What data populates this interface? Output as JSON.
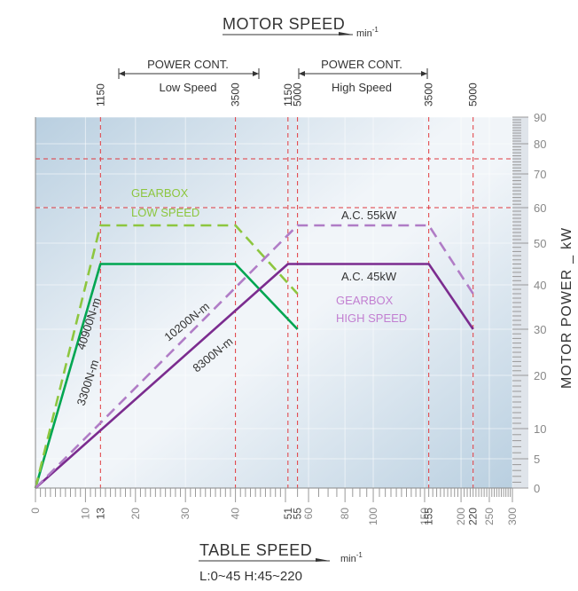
{
  "header": {
    "motor_speed_label": "MOTOR SPEED",
    "motor_speed_unit": "min",
    "unit_superscript": "-1"
  },
  "power_cont": [
    {
      "label": "POWER CONT.",
      "sublabel": "Low Speed",
      "from_rpm": 1150,
      "to_rpm": 3500
    },
    {
      "label": "POWER CONT.",
      "sublabel": "High Speed",
      "from_rpm": 1150,
      "to_rpm": 3500
    }
  ],
  "top_ticks": [
    {
      "label": "1150",
      "at_table_speed": 13
    },
    {
      "label": "3500",
      "at_table_speed": 40
    },
    {
      "label": "1150",
      "at_table_speed": 51
    },
    {
      "label": "5000",
      "at_table_speed": 55
    },
    {
      "label": "3500",
      "at_table_speed": 155
    },
    {
      "label": "5000",
      "at_table_speed": 220
    }
  ],
  "chart_data": {
    "type": "line",
    "xlabel": "TABLE SPEED",
    "xunit": "min",
    "x_range_note": "L:0~45 H:45~220",
    "ylabel": "MOTOR POWER",
    "yunit": "kW",
    "x_scale": "piecewise (0–50 linear, 50–300 log)",
    "x_ticks": [
      "0",
      "10",
      "13",
      "20",
      "30",
      "40",
      "51",
      "55",
      "60",
      "80",
      "100",
      "150",
      "155",
      "200",
      "220",
      "250",
      "300"
    ],
    "y_ticks": [
      "0",
      "5",
      "10",
      "20",
      "30",
      "40",
      "50",
      "60",
      "70",
      "80",
      "90"
    ],
    "ylim": [
      0,
      90
    ],
    "reference_lines_x": [
      13,
      40,
      51,
      55,
      155,
      220
    ],
    "reference_lines_y": [
      60,
      75
    ],
    "series": [
      {
        "name": "GEARBOX LOW SPEED",
        "color": "#00a651",
        "dash": false,
        "points": [
          [
            0,
            0
          ],
          [
            13,
            45
          ],
          [
            40,
            45
          ],
          [
            55,
            30
          ]
        ]
      },
      {
        "name": "GEARBOX LOW SPEED",
        "color": "#8dc63f",
        "dash": true,
        "points": [
          [
            0,
            0
          ],
          [
            13,
            55
          ],
          [
            40,
            55
          ],
          [
            55,
            38
          ]
        ]
      },
      {
        "name": "A.C. 45kW",
        "color": "#7b2c8f",
        "dash": false,
        "points": [
          [
            0,
            0
          ],
          [
            51,
            45
          ],
          [
            155,
            45
          ],
          [
            220,
            30
          ]
        ]
      },
      {
        "name": "A.C. 55kW",
        "color": "#b07cc6",
        "dash": true,
        "points": [
          [
            0,
            0
          ],
          [
            55,
            55
          ],
          [
            155,
            55
          ],
          [
            220,
            38
          ]
        ]
      }
    ],
    "annotations": [
      {
        "text": "GEARBOX",
        "color": "#8dc63f"
      },
      {
        "text": "LOW SPEED",
        "color": "#8dc63f"
      },
      {
        "text": "A.C. 55kW",
        "color": "#333333"
      },
      {
        "text": "A.C. 45kW",
        "color": "#333333"
      },
      {
        "text": "GEARBOX",
        "color": "#c27fd1"
      },
      {
        "text": "HIGH SPEED",
        "color": "#c27fd1"
      },
      {
        "text": "40900N-m",
        "color": "#333333"
      },
      {
        "text": "3300N-m",
        "color": "#333333"
      },
      {
        "text": "10200N-m",
        "color": "#333333"
      },
      {
        "text": "8300N-m",
        "color": "#333333"
      }
    ],
    "colors": {
      "ref_line": "#e0393e",
      "plot_bg_dark": "#b9cfe0",
      "plot_bg_light": "#eef3f8"
    }
  }
}
